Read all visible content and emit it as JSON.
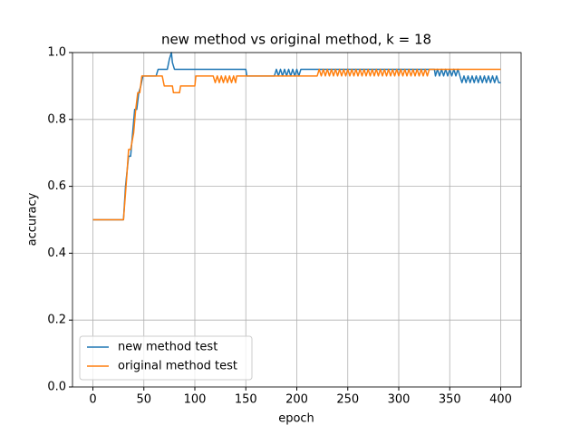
{
  "chart_data": {
    "type": "line",
    "title": "new method vs original method, k = 18",
    "x_label": "epoch",
    "y_label": "accuracy",
    "xlim": [
      -20,
      420
    ],
    "ylim": [
      0,
      1
    ],
    "xticks": [
      0,
      50,
      100,
      150,
      200,
      250,
      300,
      350,
      400
    ],
    "yticks": [
      {
        "value": 0,
        "label": "0.0"
      },
      0.2,
      0.4,
      0.6,
      0.8,
      {
        "value": 1,
        "label": "1.0"
      }
    ],
    "grid": true,
    "legend": "lower left",
    "series": [
      {
        "name": "new method test",
        "color": "#1f77b4",
        "x": [
          0,
          30,
          32,
          35,
          37,
          39,
          41,
          43,
          45,
          47,
          49,
          62,
          64,
          73,
          75,
          77,
          78,
          80,
          150,
          151,
          178,
          180,
          182,
          184,
          186,
          188,
          190,
          192,
          194,
          196,
          198,
          200,
          202,
          204,
          335,
          336,
          338,
          340,
          342,
          344,
          346,
          348,
          350,
          352,
          354,
          356,
          358,
          360,
          362,
          364,
          366,
          368,
          370,
          372,
          374,
          376,
          378,
          380,
          382,
          384,
          386,
          388,
          390,
          392,
          394,
          396,
          398,
          400
        ],
        "values": [
          0.5,
          0.5,
          0.6,
          0.69,
          0.69,
          0.76,
          0.83,
          0.83,
          0.88,
          0.9,
          0.93,
          0.93,
          0.95,
          0.95,
          0.98,
          1.0,
          0.97,
          0.95,
          0.95,
          0.93,
          0.93,
          0.95,
          0.93,
          0.95,
          0.93,
          0.95,
          0.93,
          0.95,
          0.93,
          0.95,
          0.93,
          0.95,
          0.93,
          0.95,
          0.95,
          0.93,
          0.95,
          0.93,
          0.95,
          0.93,
          0.95,
          0.93,
          0.95,
          0.93,
          0.95,
          0.93,
          0.95,
          0.93,
          0.91,
          0.93,
          0.91,
          0.93,
          0.91,
          0.93,
          0.91,
          0.93,
          0.91,
          0.93,
          0.91,
          0.93,
          0.91,
          0.93,
          0.91,
          0.93,
          0.91,
          0.93,
          0.91,
          0.91
        ]
      },
      {
        "name": "original method test",
        "color": "#ff7f0e",
        "x": [
          0,
          30,
          33,
          35,
          37,
          40,
          42,
          44,
          46,
          48,
          68,
          70,
          78,
          79,
          85,
          86,
          100,
          101,
          118,
          120,
          122,
          124,
          126,
          128,
          130,
          132,
          134,
          136,
          138,
          140,
          141,
          220,
          222,
          224,
          226,
          228,
          230,
          232,
          234,
          236,
          238,
          240,
          242,
          244,
          246,
          248,
          250,
          252,
          254,
          256,
          258,
          260,
          262,
          264,
          266,
          268,
          270,
          272,
          274,
          276,
          278,
          280,
          282,
          284,
          286,
          288,
          290,
          292,
          294,
          296,
          298,
          300,
          302,
          304,
          306,
          308,
          310,
          312,
          314,
          316,
          318,
          320,
          322,
          324,
          326,
          328,
          330,
          400
        ],
        "values": [
          0.5,
          0.5,
          0.62,
          0.71,
          0.71,
          0.76,
          0.83,
          0.88,
          0.88,
          0.93,
          0.93,
          0.9,
          0.9,
          0.88,
          0.88,
          0.9,
          0.9,
          0.93,
          0.93,
          0.91,
          0.93,
          0.91,
          0.93,
          0.91,
          0.93,
          0.91,
          0.93,
          0.91,
          0.93,
          0.91,
          0.93,
          0.93,
          0.95,
          0.93,
          0.95,
          0.93,
          0.95,
          0.93,
          0.95,
          0.93,
          0.95,
          0.93,
          0.95,
          0.93,
          0.95,
          0.93,
          0.95,
          0.93,
          0.95,
          0.93,
          0.95,
          0.93,
          0.95,
          0.93,
          0.95,
          0.93,
          0.95,
          0.93,
          0.95,
          0.93,
          0.95,
          0.93,
          0.95,
          0.93,
          0.95,
          0.93,
          0.95,
          0.93,
          0.95,
          0.93,
          0.95,
          0.93,
          0.95,
          0.93,
          0.95,
          0.93,
          0.95,
          0.93,
          0.95,
          0.93,
          0.95,
          0.93,
          0.95,
          0.93,
          0.95,
          0.93,
          0.95,
          0.95
        ]
      }
    ]
  }
}
